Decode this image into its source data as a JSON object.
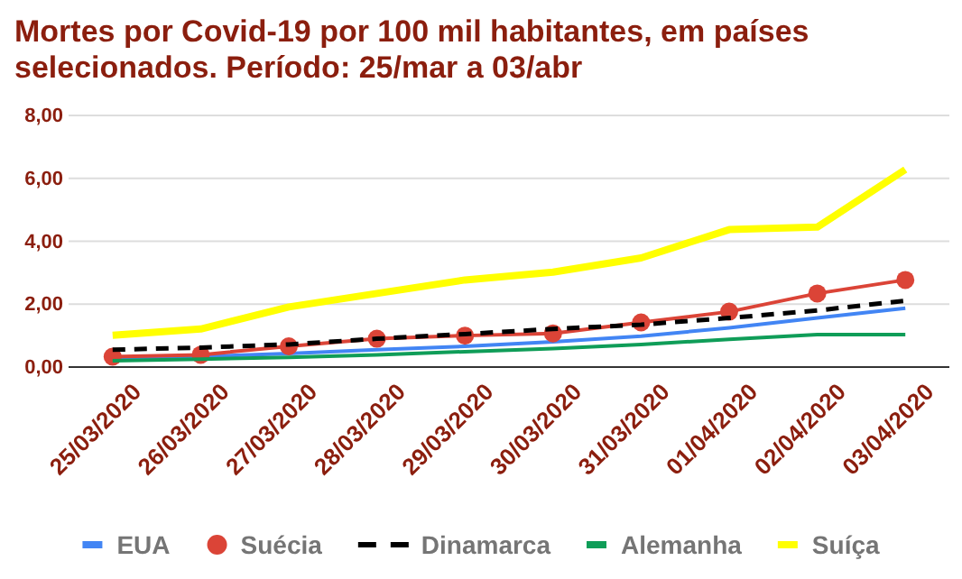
{
  "chart_data": {
    "type": "line",
    "title": "Mortes por Covid-19 por 100 mil habitantes, em países selecionados. Período: 25/mar a 03/abr",
    "categories": [
      "25/03/2020",
      "26/03/2020",
      "27/03/2020",
      "28/03/2020",
      "29/03/2020",
      "30/03/2020",
      "31/03/2020",
      "01/04/2020",
      "02/04/2020",
      "03/04/2020"
    ],
    "ylim": [
      0,
      8
    ],
    "yticks": [
      {
        "value": 0,
        "label": "0,00"
      },
      {
        "value": 2,
        "label": "2,00"
      },
      {
        "value": 4,
        "label": "4,00"
      },
      {
        "value": 6,
        "label": "6,00"
      },
      {
        "value": 8,
        "label": "8,00"
      }
    ],
    "grid": "y",
    "legend": "bottom",
    "series": [
      {
        "name": "EUA",
        "color": "#4285f4",
        "values": [
          0.27,
          0.33,
          0.43,
          0.55,
          0.66,
          0.8,
          0.98,
          1.25,
          1.56,
          1.87
        ]
      },
      {
        "name": "Suécia",
        "color": "#db4437",
        "marker": "circle",
        "values": [
          0.33,
          0.39,
          0.66,
          0.9,
          1.0,
          1.07,
          1.42,
          1.76,
          2.34,
          2.77
        ]
      },
      {
        "name": "Dinamarca",
        "color": "#000000",
        "line_style": "dashed",
        "values": [
          0.55,
          0.62,
          0.72,
          0.9,
          1.05,
          1.21,
          1.35,
          1.56,
          1.8,
          2.11
        ]
      },
      {
        "name": "Alemanha",
        "color": "#0f9d58",
        "values": [
          0.2,
          0.25,
          0.31,
          0.39,
          0.49,
          0.59,
          0.72,
          0.88,
          1.03,
          1.03
        ]
      },
      {
        "name": "Suíça",
        "color": "#ffff00",
        "values": [
          1.01,
          1.21,
          1.91,
          2.34,
          2.77,
          3.02,
          3.47,
          4.37,
          4.45,
          6.28
        ]
      }
    ]
  }
}
